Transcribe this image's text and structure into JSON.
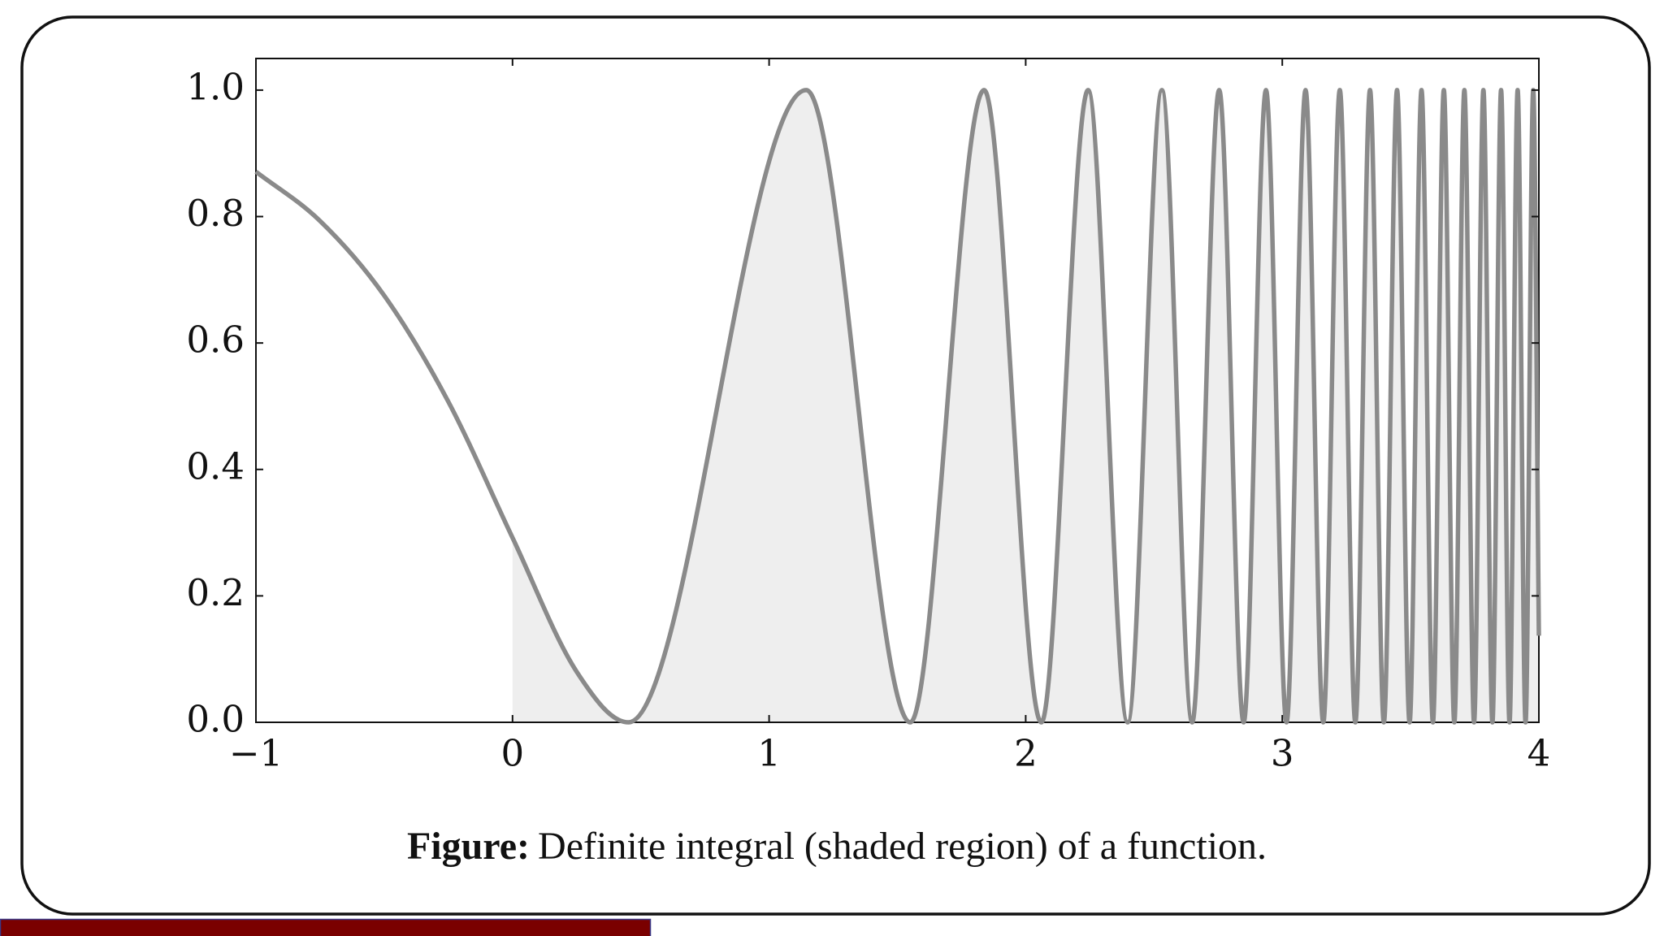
{
  "chart_data": {
    "type": "line",
    "x": [
      -1,
      -0.75,
      -0.5,
      -0.25,
      0,
      0.25,
      0.4516,
      1.1447,
      1.5502,
      1.8379,
      2.061,
      2.2433,
      2.3975,
      2.531,
      2.6488,
      2.7541,
      2.8494,
      2.9365,
      3.0165,
      3.0907,
      3.1597,
      3.2242,
      3.2848,
      3.3419,
      3.396,
      3.4473,
      3.4961,
      3.5426,
      3.5871,
      3.6296,
      3.6705,
      3.7097,
      3.7474,
      3.7838,
      3.8189,
      3.8527,
      3.8856,
      3.9173,
      3.9481,
      3.978,
      4
    ],
    "series": [
      {
        "color": "#8a8a8a",
        "values": [
          0.871,
          0.793,
          0.675,
          0.507,
          0.292,
          0.08,
          0,
          1,
          0,
          1,
          0,
          1,
          0,
          1,
          0,
          1,
          0,
          1,
          0,
          1,
          0,
          1,
          0,
          1,
          0,
          1,
          0,
          1,
          0,
          1,
          0,
          1,
          0,
          1,
          0,
          1,
          0,
          1,
          0,
          1,
          0.137
        ]
      }
    ],
    "shade": [
      0,
      4
    ],
    "shade_color": "#eeeeee",
    "xlim": [
      -1,
      4
    ],
    "xticks": [
      {
        "value": -1,
        "label": "−1"
      },
      0,
      1,
      2,
      3,
      4
    ],
    "ylim": [
      0,
      1.05
    ],
    "yticks": [
      {
        "value": 0,
        "label": "0.0"
      },
      0.2,
      0.4,
      0.6,
      0.8,
      {
        "value": 1,
        "label": "1.0"
      }
    ]
  },
  "caption": {
    "label": "Figure:",
    "text": "Definite integral (shaded region) of a function."
  }
}
